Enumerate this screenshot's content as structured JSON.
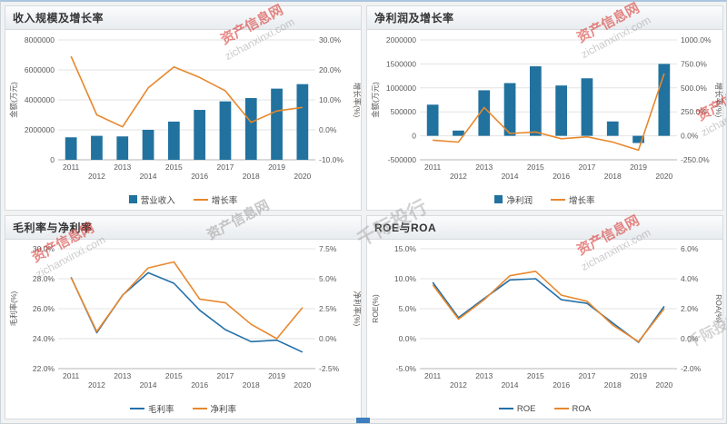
{
  "watermark": {
    "brand": "资产信息网",
    "domain": "zichanxinxi.com",
    "alt": "千际投行"
  },
  "chart_data": [
    {
      "type": "bar-line",
      "title": "收入规模及增长率",
      "categories": [
        "2011",
        "2012",
        "2013",
        "2014",
        "2015",
        "2016",
        "2017",
        "2018",
        "2019",
        "2020"
      ],
      "left_axis": {
        "title": "金额(万元)",
        "min": 0,
        "max": 8000000,
        "step": 2000000,
        "format": "int"
      },
      "right_axis": {
        "title": "增长率(%)",
        "min": -10,
        "max": 30,
        "step": 10,
        "format": "pct"
      },
      "legend_position": "bottom",
      "grid": true,
      "series": [
        {
          "name": "营业收入",
          "type": "bar",
          "axis": "left",
          "color": "#21729E",
          "values": [
            1500000,
            1600000,
            1560000,
            2000000,
            2550000,
            3330000,
            3900000,
            4120000,
            4750000,
            5050000
          ]
        },
        {
          "name": "增长率",
          "type": "line",
          "axis": "right",
          "color": "#E8882D",
          "values": [
            24.5,
            5.0,
            1.0,
            14.0,
            21.0,
            17.5,
            13.0,
            2.5,
            6.3,
            7.5
          ]
        }
      ]
    },
    {
      "type": "bar-line",
      "title": "净利润及增长率",
      "categories": [
        "2011",
        "2012",
        "2013",
        "2014",
        "2015",
        "2016",
        "2017",
        "2018",
        "2019",
        "2020"
      ],
      "left_axis": {
        "title": "金额(万元)",
        "min": -500000,
        "max": 2000000,
        "step": 500000,
        "format": "int"
      },
      "right_axis": {
        "title": "增长率(%)",
        "min": -250,
        "max": 1000,
        "step": 250,
        "format": "pct"
      },
      "legend_position": "bottom",
      "grid": true,
      "series": [
        {
          "name": "净利润",
          "type": "bar",
          "axis": "left",
          "color": "#21729E",
          "values": [
            650000,
            110000,
            950000,
            1100000,
            1450000,
            1050000,
            1200000,
            300000,
            -150000,
            1500000
          ]
        },
        {
          "name": "增长率",
          "type": "line",
          "axis": "right",
          "color": "#E8882D",
          "values": [
            -45,
            -65,
            295,
            25,
            40,
            -30,
            -10,
            -65,
            -150,
            650
          ]
        }
      ]
    },
    {
      "type": "line",
      "title": "毛利率与净利率",
      "categories": [
        "2011",
        "2012",
        "2013",
        "2014",
        "2015",
        "2016",
        "2017",
        "2018",
        "2019",
        "2020"
      ],
      "left_axis": {
        "title": "毛利率(%)",
        "min": 22,
        "max": 30,
        "step": 2,
        "format": "pct"
      },
      "right_axis": {
        "title": "净利率(%)",
        "min": -2.5,
        "max": 7.5,
        "step": 2.5,
        "format": "pct"
      },
      "legend_position": "bottom",
      "grid": true,
      "series": [
        {
          "name": "毛利率",
          "type": "line",
          "axis": "left",
          "color": "#2470A8",
          "values": [
            28.1,
            24.4,
            26.9,
            28.4,
            27.7,
            25.9,
            24.6,
            23.8,
            23.9,
            23.1
          ]
        },
        {
          "name": "净利率",
          "type": "line",
          "axis": "right",
          "color": "#E8882D",
          "values": [
            5.1,
            0.6,
            3.6,
            5.9,
            6.4,
            3.3,
            3.0,
            1.2,
            0.0,
            2.6
          ]
        }
      ]
    },
    {
      "type": "line",
      "title": "ROE与ROA",
      "categories": [
        "2011",
        "2012",
        "2013",
        "2014",
        "2015",
        "2016",
        "2017",
        "2018",
        "2019",
        "2020"
      ],
      "left_axis": {
        "title": "ROE(%)",
        "min": -5,
        "max": 15,
        "step": 5,
        "format": "pct"
      },
      "right_axis": {
        "title": "ROA(%)",
        "min": -2,
        "max": 6,
        "step": 2,
        "format": "pct"
      },
      "legend_position": "bottom",
      "grid": true,
      "series": [
        {
          "name": "ROE",
          "type": "line",
          "axis": "left",
          "color": "#2470A8",
          "values": [
            9.4,
            3.5,
            6.7,
            9.8,
            10.0,
            6.5,
            5.9,
            2.6,
            -0.6,
            5.4
          ]
        },
        {
          "name": "ROA",
          "type": "line",
          "axis": "right",
          "color": "#E8882D",
          "values": [
            3.6,
            1.3,
            2.6,
            4.2,
            4.5,
            2.9,
            2.5,
            0.9,
            -0.2,
            2.0
          ]
        }
      ]
    }
  ]
}
